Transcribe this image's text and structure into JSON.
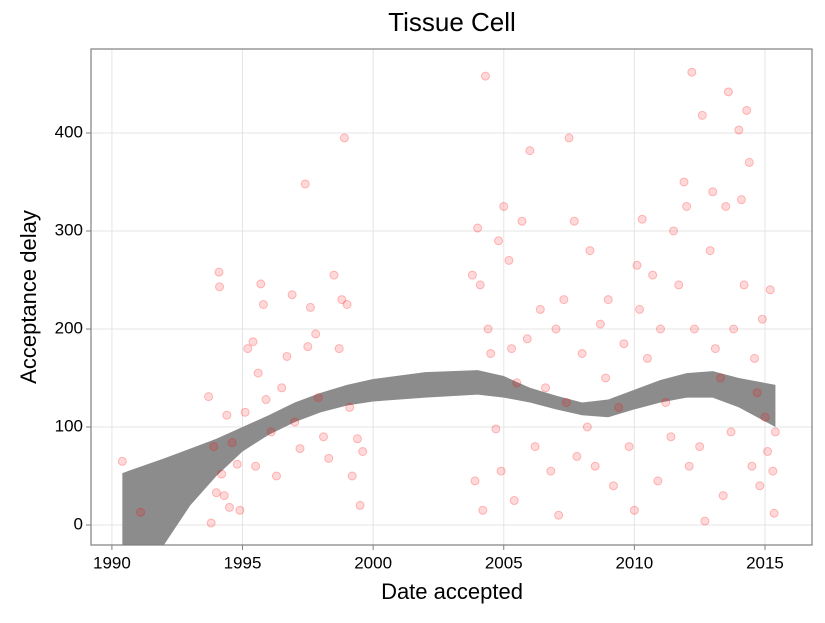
{
  "chart_data": {
    "type": "scatter",
    "title": "Tissue Cell",
    "xlabel": "Date accepted",
    "ylabel": "Acceptance delay",
    "xlim": [
      1989.2,
      2016.8
    ],
    "ylim": [
      -20.4,
      485.7
    ],
    "xticks": [
      1990,
      1995,
      2000,
      2005,
      2010,
      2015
    ],
    "yticks": [
      0,
      100,
      200,
      300,
      400
    ],
    "grid": true,
    "color": "#ff0000",
    "x": [
      1990.4,
      1991.1,
      1993.7,
      1993.8,
      1993.9,
      1994,
      1994.1,
      1994.12,
      1994.2,
      1994.3,
      1994.4,
      1994.5,
      1994.6,
      1994.8,
      1994.9,
      1995.1,
      1995.2,
      1995.4,
      1995.5,
      1995.6,
      1995.7,
      1995.8,
      1995.9,
      1996.1,
      1996.3,
      1996.5,
      1996.7,
      1996.9,
      1997,
      1997.2,
      1997.4,
      1997.5,
      1997.6,
      1997.8,
      1997.9,
      1998.1,
      1998.3,
      1998.5,
      1998.7,
      1998.8,
      1998.9,
      1999,
      1999.1,
      1999.2,
      1999.4,
      1999.5,
      1999.6,
      2003.8,
      2003.9,
      2004,
      2004.1,
      2004.2,
      2004.3,
      2004.4,
      2004.5,
      2004.7,
      2004.8,
      2004.9,
      2005,
      2005.2,
      2005.3,
      2005.4,
      2005.5,
      2005.7,
      2005.9,
      2006,
      2006.2,
      2006.4,
      2006.6,
      2006.8,
      2007,
      2007.1,
      2007.3,
      2007.4,
      2007.5,
      2007.7,
      2007.8,
      2008,
      2008.2,
      2008.3,
      2008.5,
      2008.7,
      2008.9,
      2009,
      2009.2,
      2009.4,
      2009.6,
      2009.8,
      2010,
      2010.1,
      2010.2,
      2010.3,
      2010.5,
      2010.7,
      2010.9,
      2011,
      2011.2,
      2011.4,
      2011.5,
      2011.7,
      2011.9,
      2012,
      2012.1,
      2012.2,
      2012.3,
      2012.5,
      2012.6,
      2012.7,
      2012.9,
      2013,
      2013.1,
      2013.3,
      2013.4,
      2013.5,
      2013.6,
      2013.7,
      2013.8,
      2014,
      2014.1,
      2014.2,
      2014.3,
      2014.4,
      2014.5,
      2014.6,
      2014.7,
      2014.8,
      2014.9,
      2015,
      2015.1,
      2015.2,
      2015.3,
      2015.35,
      2015.4
    ],
    "values": [
      65,
      13,
      131,
      2,
      80,
      33,
      258,
      243,
      52,
      30,
      112,
      18,
      84,
      62,
      15,
      115,
      180,
      187,
      60,
      155,
      246,
      225,
      128,
      95,
      50,
      140,
      172,
      235,
      105,
      78,
      348,
      182,
      222,
      195,
      130,
      90,
      68,
      255,
      180,
      230,
      395,
      225,
      120,
      50,
      88,
      20,
      75,
      255,
      45,
      303,
      245,
      15,
      458,
      200,
      175,
      98,
      290,
      55,
      325,
      270,
      180,
      25,
      145,
      310,
      190,
      382,
      80,
      220,
      140,
      55,
      200,
      10,
      230,
      125,
      395,
      310,
      70,
      175,
      100,
      280,
      60,
      205,
      150,
      230,
      40,
      120,
      185,
      80,
      15,
      265,
      220,
      312,
      170,
      255,
      45,
      200,
      125,
      90,
      300,
      245,
      350,
      325,
      60,
      462,
      200,
      80,
      418,
      4,
      280,
      340,
      180,
      150,
      30,
      325,
      442,
      95,
      200,
      403,
      332,
      245,
      423,
      370,
      60,
      170,
      135,
      40,
      210,
      110,
      75,
      240,
      55,
      12,
      95
    ],
    "band": {
      "color": "#8c8c8c",
      "x": [
        1990.4,
        1992,
        1993,
        1994,
        1995,
        1996,
        1997,
        1998,
        1999,
        2000,
        2002,
        2004,
        2005,
        2006,
        2007,
        2008,
        2009,
        2010,
        2011,
        2012,
        2013,
        2014,
        2015.4
      ],
      "lower": [
        -120,
        -20,
        20,
        50,
        75,
        92,
        105,
        115,
        122,
        126,
        130,
        133,
        130,
        125,
        118,
        112,
        110,
        118,
        125,
        130,
        130,
        120,
        100
      ],
      "upper": [
        53,
        68,
        78,
        88,
        100,
        112,
        125,
        135,
        143,
        149,
        156,
        158,
        152,
        140,
        132,
        125,
        128,
        138,
        148,
        155,
        157,
        150,
        143
      ]
    }
  }
}
